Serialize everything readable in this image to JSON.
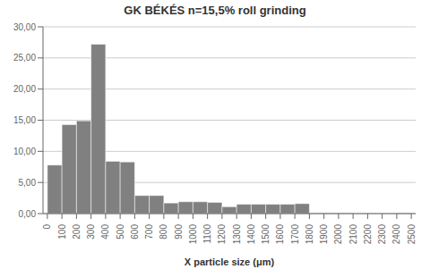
{
  "chart_data": {
    "type": "histogram",
    "title": "GK BÉKÉS n=15,5% roll grinding",
    "x_label": "X particle size (μm)",
    "bins": [
      0,
      100,
      200,
      300,
      400,
      500,
      600,
      700,
      800,
      900,
      1000,
      1100,
      1200,
      1300,
      1400,
      1500,
      1600,
      1700,
      1800,
      1900,
      2000,
      2100,
      2200,
      2300,
      2400,
      2500
    ],
    "values": [
      7.8,
      14.3,
      14.9,
      27.2,
      8.4,
      8.3,
      2.9,
      2.9,
      1.7,
      1.9,
      1.9,
      1.8,
      1.1,
      1.5,
      1.5,
      1.5,
      1.5,
      1.6,
      0.1,
      0.1,
      0.1,
      0.0,
      0.0,
      0.0,
      0.1
    ],
    "color": "#808080",
    "xlim": [
      -30,
      2530
    ],
    "xticks": [
      0,
      100,
      200,
      300,
      400,
      500,
      600,
      700,
      800,
      900,
      1000,
      1100,
      1200,
      1300,
      1400,
      1500,
      1600,
      1700,
      1800,
      1900,
      2000,
      2100,
      2200,
      2300,
      2400,
      2500
    ],
    "ylim": [
      0,
      30
    ],
    "yticks": [
      {
        "value": 0,
        "label": "0,00"
      },
      {
        "value": 5,
        "label": "5,00"
      },
      {
        "value": 10,
        "label": "10,00"
      },
      {
        "value": 15,
        "label": "15,00"
      },
      {
        "value": 20,
        "label": "20,00"
      },
      {
        "value": 25,
        "label": "25,00"
      },
      {
        "value": 30,
        "label": "30,00"
      }
    ],
    "grid": true
  }
}
